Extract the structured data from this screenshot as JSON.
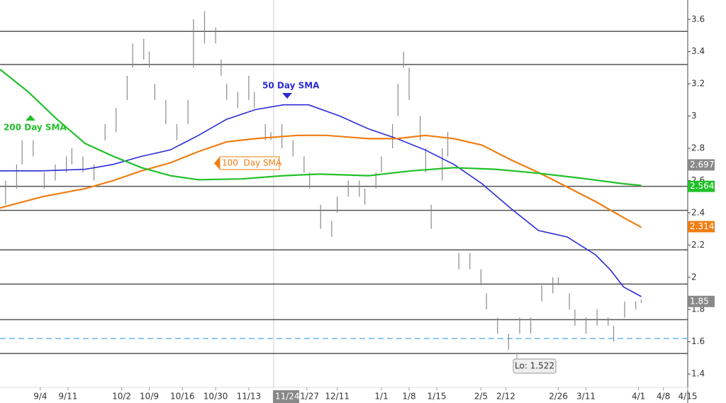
{
  "chart_data": {
    "type": "ohlc",
    "xlim": [
      0,
      124.4
    ],
    "ylim": [
      1.22,
      3.72
    ],
    "xticks": [
      {
        "value": 7.3,
        "label": "9/4"
      },
      {
        "value": 12.3,
        "label": "9/11"
      },
      {
        "value": 22,
        "label": "10/2"
      },
      {
        "value": 27,
        "label": "10/9"
      },
      {
        "value": 33,
        "label": "10/16"
      },
      {
        "value": 39,
        "label": "10/30"
      },
      {
        "value": 45,
        "label": "11/13"
      },
      {
        "value": 55.5,
        "label": "11/27"
      },
      {
        "value": 61,
        "label": "12/11"
      },
      {
        "value": 69,
        "label": "1/1"
      },
      {
        "value": 74,
        "label": "1/8"
      },
      {
        "value": 79,
        "label": "1/15"
      },
      {
        "value": 87,
        "label": "2/5"
      },
      {
        "value": 91.5,
        "label": "2/12"
      },
      {
        "value": 101,
        "label": "2/26"
      },
      {
        "value": 106,
        "label": "3/11"
      },
      {
        "value": 115.5,
        "label": "4/1"
      },
      {
        "value": 120,
        "label": "4/8"
      },
      {
        "value": 124.4,
        "label": "4/15"
      }
    ],
    "yticks": [
      1.4,
      1.6,
      1.8,
      2,
      2.2,
      2.4,
      2.6,
      2.8,
      3,
      3.2,
      3.4,
      3.6
    ],
    "crosshair": {
      "x": 49.5,
      "label": "11/24"
    },
    "bars": {
      "color": "#8a8a8a",
      "x": [
        1,
        3,
        4,
        6,
        8,
        10,
        12,
        13,
        15,
        17,
        19,
        21,
        23,
        24,
        26,
        27,
        28,
        30,
        32,
        34,
        35,
        37,
        39,
        40,
        41,
        43,
        45,
        46,
        48,
        49,
        51,
        53,
        55,
        56,
        58,
        60,
        61,
        63,
        65,
        66,
        68,
        69,
        71,
        72,
        73,
        74,
        76,
        77,
        78,
        80,
        81,
        83,
        85,
        87,
        88,
        90,
        92,
        94,
        96,
        98,
        100,
        101,
        103,
        104,
        106,
        108,
        110,
        111,
        113,
        115,
        116
      ],
      "low": [
        2.45,
        2.55,
        2.7,
        2.75,
        2.55,
        2.6,
        2.65,
        2.7,
        2.65,
        2.6,
        2.85,
        2.9,
        3.1,
        3.3,
        3.35,
        3.3,
        3.1,
        2.95,
        2.85,
        2.95,
        3.3,
        3.45,
        3.45,
        3.25,
        3.1,
        3.05,
        3.1,
        3.05,
        2.85,
        2.85,
        2.8,
        2.75,
        2.65,
        2.55,
        2.3,
        2.25,
        2.4,
        2.5,
        2.5,
        2.45,
        2.55,
        2.65,
        2.8,
        3.0,
        3.3,
        3.1,
        2.85,
        2.65,
        2.3,
        2.6,
        2.75,
        2.05,
        2.05,
        1.95,
        1.8,
        1.65,
        1.55,
        1.65,
        1.65,
        1.85,
        1.9,
        1.95,
        1.8,
        1.7,
        1.65,
        1.7,
        1.7,
        1.6,
        1.75,
        1.8,
        1.84
      ],
      "high": [
        2.6,
        2.7,
        2.85,
        2.85,
        2.65,
        2.7,
        2.75,
        2.8,
        2.75,
        2.7,
        2.95,
        3.05,
        3.25,
        3.45,
        3.48,
        3.4,
        3.2,
        3.1,
        2.95,
        3.1,
        3.6,
        3.65,
        3.55,
        3.35,
        3.2,
        3.15,
        3.25,
        3.15,
        2.95,
        2.9,
        2.95,
        2.85,
        2.75,
        2.65,
        2.45,
        2.35,
        2.5,
        2.6,
        2.6,
        2.55,
        2.65,
        2.75,
        2.95,
        3.2,
        3.4,
        3.3,
        3.0,
        2.8,
        2.45,
        2.8,
        2.9,
        2.15,
        2.15,
        2.05,
        1.9,
        1.75,
        1.65,
        1.75,
        1.75,
        1.95,
        2.0,
        2.0,
        1.9,
        1.8,
        1.75,
        1.8,
        1.75,
        1.7,
        1.85,
        1.85,
        1.86
      ]
    },
    "lines": [
      {
        "name": "50 Day SMA",
        "color": "#2b2bd6",
        "x": [
          0,
          7.7,
          15.4,
          20.5,
          25.6,
          30.8,
          35.9,
          41,
          46.2,
          51.3,
          55.8,
          61.5,
          66.7,
          71.8,
          76.9,
          82.1,
          87.2,
          92.3,
          97.4,
          102.6,
          107.7,
          110.3,
          112.8,
          116
        ],
        "values": [
          2.66,
          2.66,
          2.67,
          2.7,
          2.75,
          2.79,
          2.88,
          2.98,
          3.04,
          3.07,
          3.07,
          3.0,
          2.92,
          2.86,
          2.79,
          2.7,
          2.58,
          2.43,
          2.29,
          2.25,
          2.14,
          2.05,
          1.94,
          1.88
        ]
      },
      {
        "name": "100  Day SMA",
        "color": "#f07d12",
        "x": [
          0,
          7.7,
          15.4,
          20.5,
          25.6,
          30.8,
          35.9,
          41,
          46.2,
          53.8,
          59,
          66.7,
          71.8,
          76.9,
          82.1,
          87.2,
          92.3,
          97.4,
          102.6,
          107.7,
          112.8,
          116
        ],
        "values": [
          2.43,
          2.5,
          2.55,
          2.6,
          2.66,
          2.71,
          2.78,
          2.84,
          2.86,
          2.88,
          2.88,
          2.86,
          2.86,
          2.88,
          2.86,
          2.82,
          2.73,
          2.65,
          2.56,
          2.47,
          2.37,
          2.31
        ]
      },
      {
        "name": "200 Day SMA",
        "color": "#22c02a",
        "x": [
          0,
          5.1,
          10.3,
          15.4,
          20.5,
          25.6,
          30.8,
          35.9,
          43.6,
          51.3,
          57.7,
          66.7,
          74.4,
          82.1,
          89.7,
          97.4,
          105.1,
          112.8,
          116
        ],
        "values": [
          3.29,
          3.15,
          2.98,
          2.83,
          2.75,
          2.68,
          2.63,
          2.605,
          2.61,
          2.63,
          2.64,
          2.63,
          2.66,
          2.68,
          2.67,
          2.645,
          2.615,
          2.58,
          2.57
        ]
      }
    ],
    "levels": [
      3.525,
      3.32,
      2.564,
      2.415,
      2.17,
      1.958,
      1.737,
      1.527
    ],
    "dashed_level": 1.62,
    "price_tags": [
      {
        "value": 2.697,
        "color": "#8a8a8a"
      },
      {
        "value": 2.564,
        "color": "#22c02a"
      },
      {
        "value": 2.314,
        "color": "#f07d12"
      },
      {
        "value": 1.85,
        "color": "#8a8a8a"
      }
    ],
    "low_note": "Lo: 1.522"
  }
}
